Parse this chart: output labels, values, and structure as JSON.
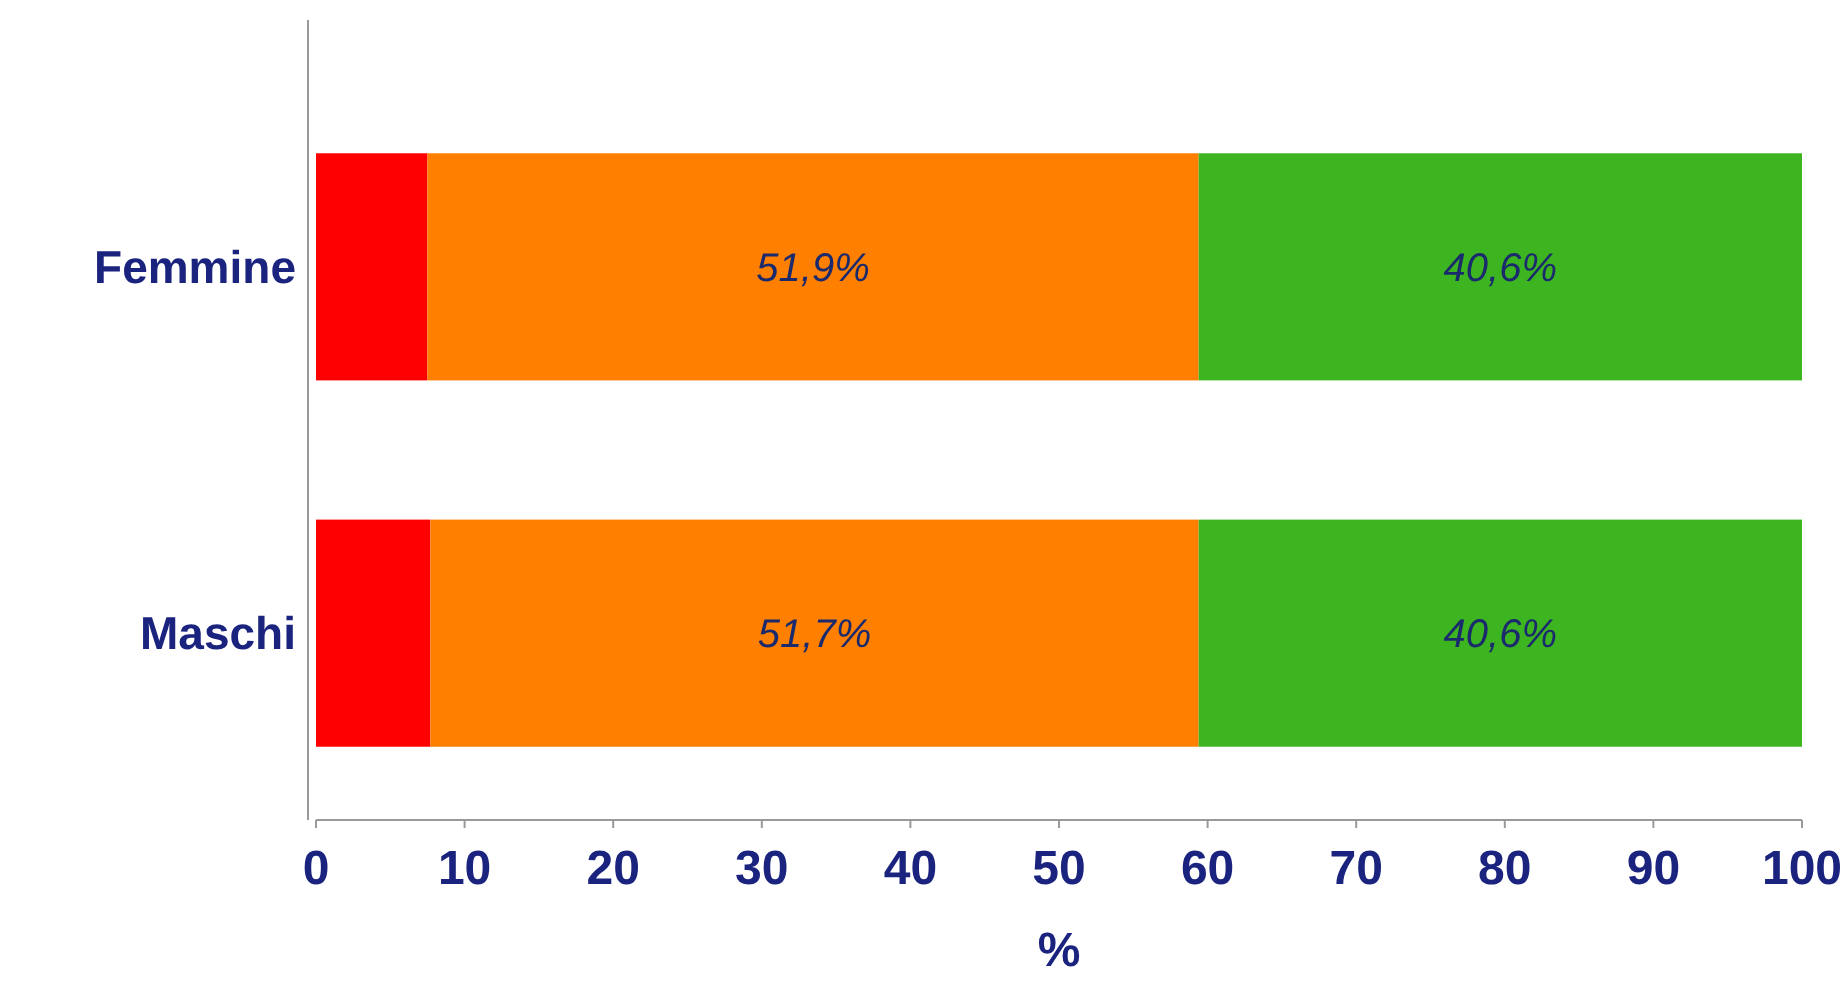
{
  "chart_data": {
    "type": "bar",
    "orientation": "horizontal",
    "stacked": true,
    "categories": [
      "Femmine",
      "Maschi"
    ],
    "series": [
      {
        "color": "#ff0000",
        "values": [
          7.5,
          7.7
        ]
      },
      {
        "color": "#ff7f00",
        "values": [
          51.9,
          51.7
        ],
        "value_labels": [
          "51,9%",
          "51,7%"
        ]
      },
      {
        "color": "#3cb521",
        "values": [
          40.6,
          40.6
        ],
        "value_labels": [
          "40,6%",
          "40,6%"
        ]
      }
    ],
    "xlabel": "%",
    "xlim": [
      0,
      100
    ],
    "xticks": [
      0,
      10,
      20,
      30,
      40,
      50,
      60,
      70,
      80,
      90,
      100
    ]
  }
}
